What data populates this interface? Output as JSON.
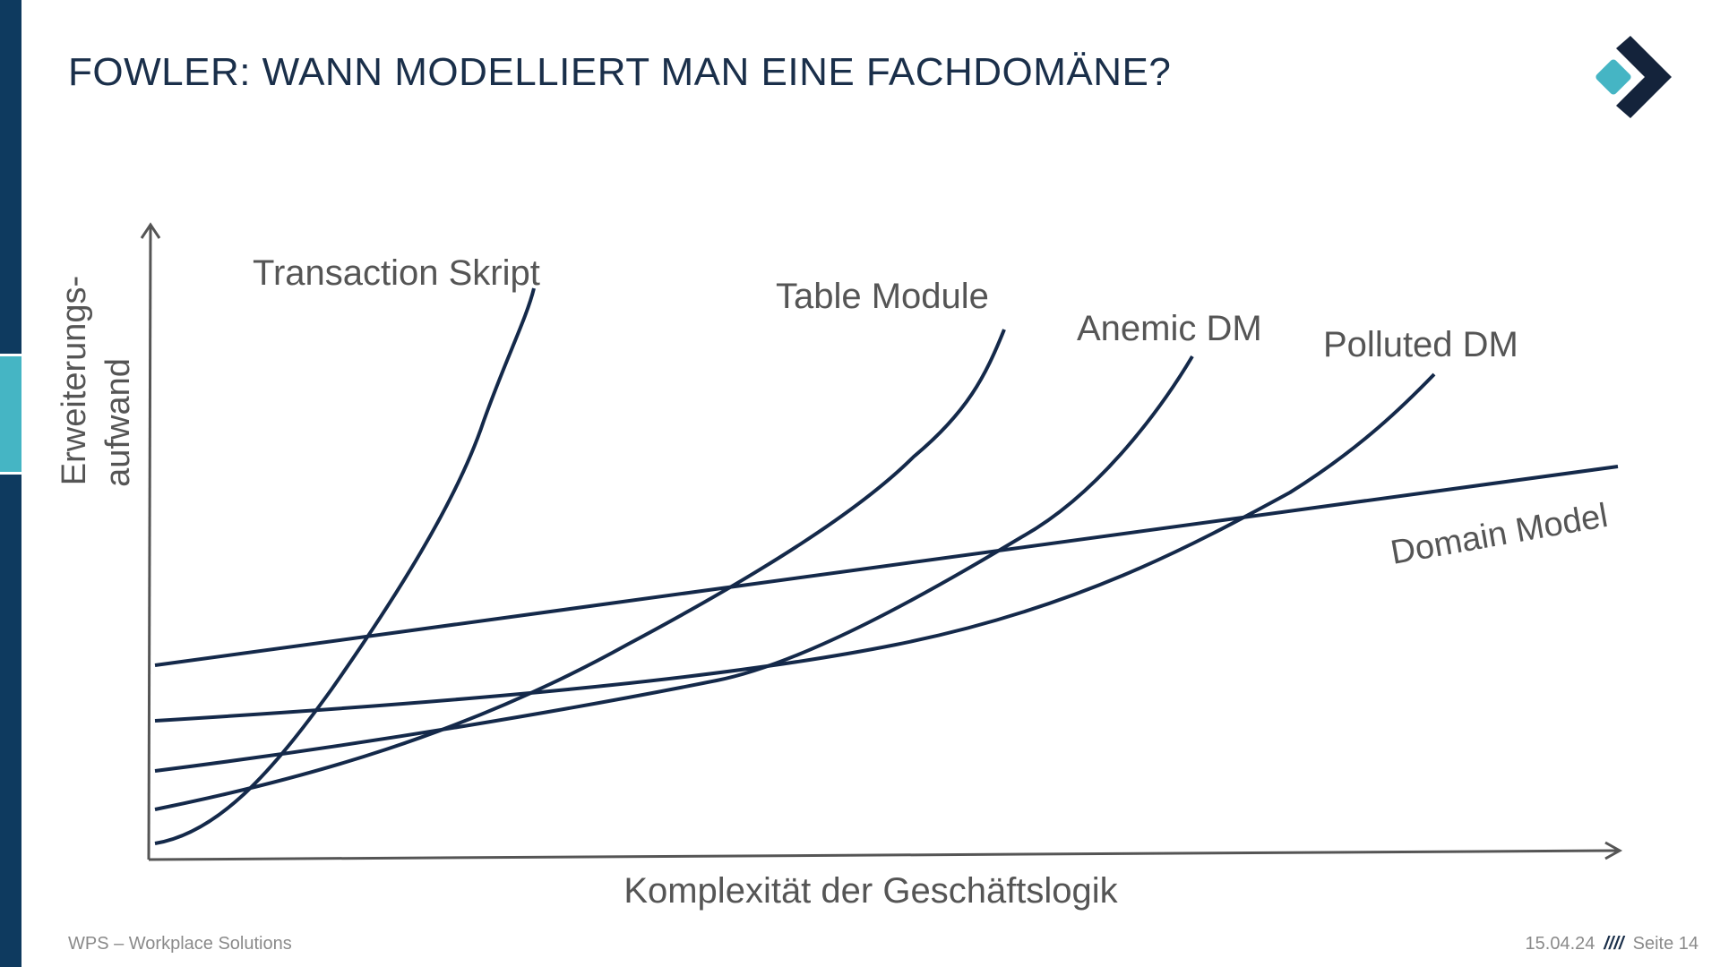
{
  "slide": {
    "title": "FOWLER: WANN MODELLIERT MAN EINE FACHDOMÄNE?"
  },
  "footer": {
    "company": "WPS – Workplace Solutions",
    "date": "15.04.24",
    "separator": "////",
    "page": "Seite 14"
  },
  "colors": {
    "navy": "#0e3a5f",
    "teal": "#45b5c4",
    "curve": "#14294a"
  },
  "diagram": {
    "y_axis_label_line1": "Erweiterungs-",
    "y_axis_label_line2": "aufwand",
    "x_axis_label": "Komplexität der Geschäftslogik",
    "curves": [
      {
        "label": "Transaction Skript"
      },
      {
        "label": "Table Module"
      },
      {
        "label": "Anemic DM"
      },
      {
        "label": "Polluted DM"
      },
      {
        "label": "Domain Model"
      }
    ]
  }
}
